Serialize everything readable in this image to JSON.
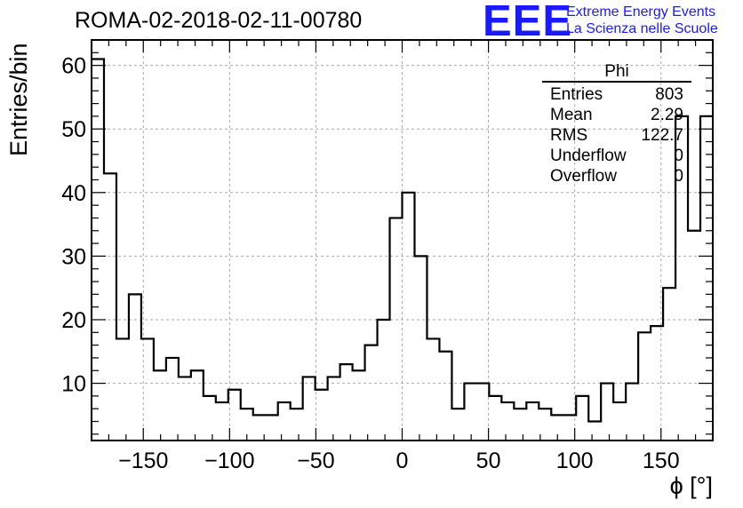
{
  "chart_data": {
    "type": "bar",
    "title": "ROMA-02-2018-02-11-00780",
    "xlabel": "ϕ [°]",
    "ylabel": "Entries/bin",
    "xlim": [
      -180,
      180
    ],
    "ylim": [
      1,
      64
    ],
    "bin_width": 7.2,
    "values": [
      61,
      43,
      17,
      24,
      17,
      12,
      14,
      11,
      12,
      8,
      7,
      9,
      6,
      5,
      5,
      7,
      6,
      11,
      9,
      11,
      13,
      12,
      16,
      20,
      36,
      40,
      30,
      17,
      15,
      6,
      10,
      10,
      8,
      7,
      6,
      7,
      6,
      5,
      5,
      8,
      4,
      10,
      7,
      10,
      18,
      19,
      25,
      52,
      34,
      52
    ],
    "x_ticks": [
      -150,
      -100,
      -50,
      0,
      50,
      100,
      150
    ],
    "x_tick_labels": [
      "−150",
      "−100",
      "−50",
      "0",
      "50",
      "100",
      "150"
    ],
    "y_ticks": [
      10,
      20,
      30,
      40,
      50,
      60
    ],
    "y_tick_labels": [
      "10",
      "20",
      "30",
      "40",
      "50",
      "60"
    ],
    "grid": true,
    "line_color": "#000000"
  },
  "logo": {
    "mark": "EEE",
    "line1": "Extreme Energy Events",
    "line2": "La Scienza nelle Scuole",
    "color": "#1a1aff"
  },
  "stats": {
    "title": "Phi",
    "rows": [
      {
        "label": "Entries",
        "value": "803"
      },
      {
        "label": "Mean",
        "value": "2.29"
      },
      {
        "label": "RMS",
        "value": "122.7"
      },
      {
        "label": "Underflow",
        "value": "0"
      },
      {
        "label": "Overflow",
        "value": "0"
      }
    ]
  }
}
